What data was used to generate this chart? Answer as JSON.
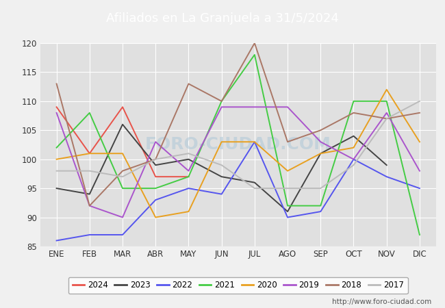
{
  "title": "Afiliados en La Granjuela a 31/5/2024",
  "ylim": [
    85,
    120
  ],
  "yticks": [
    85,
    90,
    95,
    100,
    105,
    110,
    115,
    120
  ],
  "months": [
    "ENE",
    "FEB",
    "MAR",
    "ABR",
    "MAY",
    "JUN",
    "JUL",
    "AGO",
    "SEP",
    "OCT",
    "NOV",
    "DIC"
  ],
  "series": {
    "2024": {
      "color": "#e8534a",
      "data": [
        109,
        101,
        109,
        97,
        97,
        null,
        null,
        null,
        null,
        null,
        null,
        null
      ]
    },
    "2023": {
      "color": "#444444",
      "data": [
        95,
        94,
        106,
        99,
        100,
        97,
        96,
        91,
        101,
        104,
        99,
        null
      ]
    },
    "2022": {
      "color": "#5555ee",
      "data": [
        86,
        87,
        87,
        93,
        95,
        94,
        103,
        90,
        91,
        100,
        97,
        95
      ]
    },
    "2021": {
      "color": "#44cc44",
      "data": [
        102,
        108,
        95,
        95,
        97,
        110,
        118,
        92,
        92,
        110,
        110,
        87
      ]
    },
    "2020": {
      "color": "#e8a020",
      "data": [
        100,
        101,
        101,
        90,
        91,
        103,
        103,
        98,
        101,
        102,
        112,
        103
      ]
    },
    "2019": {
      "color": "#aa55cc",
      "data": [
        108,
        92,
        90,
        103,
        98,
        109,
        109,
        109,
        103,
        100,
        108,
        98
      ]
    },
    "2018": {
      "color": "#aa7766",
      "data": [
        113,
        92,
        98,
        100,
        113,
        110,
        120,
        103,
        105,
        108,
        107,
        108
      ]
    },
    "2017": {
      "color": "#bbbbbb",
      "data": [
        98,
        98,
        97,
        100,
        101,
        99,
        95,
        95,
        95,
        99,
        107,
        110
      ]
    }
  },
  "legend_order": [
    "2024",
    "2023",
    "2022",
    "2021",
    "2020",
    "2019",
    "2018",
    "2017"
  ],
  "watermark": "FORO-CIUDAD.COM",
  "footer_url": "http://www.foro-ciudad.com",
  "bg_color": "#f0f0f0",
  "plot_bg_color": "#e0e0e0",
  "grid_color": "#ffffff",
  "title_bar_color": "#5b9bd5"
}
